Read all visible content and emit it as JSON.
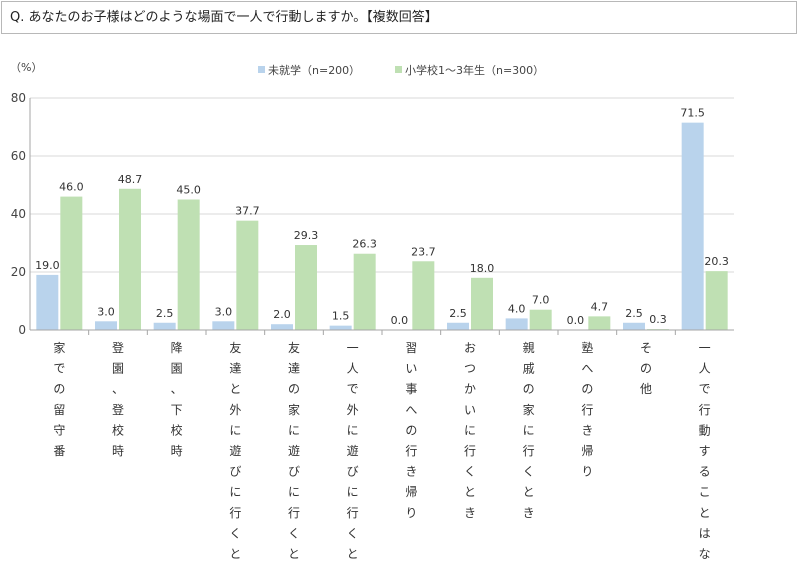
{
  "question": "Q. あなたのお子様はどのような場面で一人で行動しますか。【複数回答】",
  "colors": {
    "series1": "#b9d3ec",
    "series2": "#bfe0b3",
    "grid": "#d9d9d9",
    "axis": "#a6a6a6"
  },
  "chart_data": {
    "type": "bar",
    "unit_label": "（%）",
    "ylim": [
      0,
      80
    ],
    "yticks": [
      "0",
      "20",
      "40",
      "60",
      "80"
    ],
    "grid": true,
    "legend_position": "top-center",
    "categories": [
      "家での留守番",
      "登園、登校時",
      "降園、下校時",
      "友達と外に遊びに行くとき",
      "友達の家に遊びに行くとき",
      "一人で外に遊びに行くとき",
      "習い事への行き帰り",
      "おつかいに行くとき",
      "親戚の家に行くとき",
      "塾への行き帰り",
      "その他",
      "一人で行動することはない"
    ],
    "series": [
      {
        "name": "未就学（n=200）",
        "values": [
          19.0,
          3.0,
          2.5,
          3.0,
          2.0,
          1.5,
          0.0,
          2.5,
          4.0,
          0.0,
          2.5,
          71.5
        ],
        "labels": [
          "19.0",
          "3.0",
          "2.5",
          "3.0",
          "2.0",
          "1.5",
          "0.0",
          "2.5",
          "4.0",
          "0.0",
          "2.5",
          "71.5"
        ]
      },
      {
        "name": "小学校1～3年生（n=300）",
        "values": [
          46.0,
          48.7,
          45.0,
          37.7,
          29.3,
          26.3,
          23.7,
          18.0,
          7.0,
          4.7,
          0.3,
          20.3
        ],
        "labels": [
          "46.0",
          "48.7",
          "45.0",
          "37.7",
          "29.3",
          "26.3",
          "23.7",
          "18.0",
          "7.0",
          "4.7",
          "0.3",
          "20.3"
        ]
      }
    ]
  }
}
